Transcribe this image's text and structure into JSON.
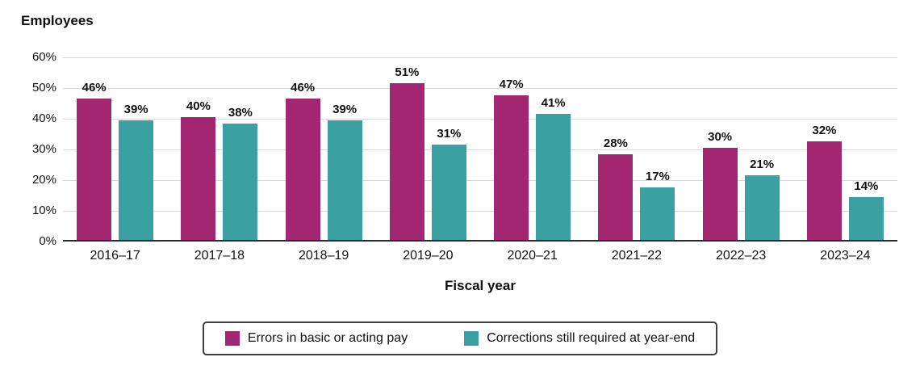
{
  "chart_data": {
    "type": "bar",
    "title": "",
    "y_axis_title": "Employees",
    "xlabel": "Fiscal year",
    "ylabel": "Employees",
    "categories": [
      "2016–17",
      "2017–18",
      "2018–19",
      "2019–20",
      "2020–21",
      "2021–22",
      "2022–23",
      "2023–24"
    ],
    "series": [
      {
        "name": "Errors in basic or acting pay",
        "color": "#a22672",
        "values": [
          46,
          40,
          46,
          51,
          47,
          28,
          30,
          32
        ]
      },
      {
        "name": "Corrections still required at year-end",
        "color": "#3aa0a2",
        "values": [
          39,
          38,
          39,
          31,
          41,
          17,
          21,
          14
        ]
      }
    ],
    "value_labels": [
      [
        "46%",
        "40%",
        "46%",
        "51%",
        "47%",
        "28%",
        "30%",
        "32%"
      ],
      [
        "39%",
        "38%",
        "39%",
        "31%",
        "41%",
        "17%",
        "21%",
        "14%"
      ]
    ],
    "ylim": [
      0,
      60
    ],
    "ytick_step": 10,
    "y_ticks": [
      "0%",
      "10%",
      "20%",
      "30%",
      "40%",
      "50%",
      "60%"
    ],
    "value_suffix": "%",
    "grid": true,
    "legend_position": "bottom",
    "colors": {
      "gridline": "#d9d9d9",
      "axis_line": "#2b2b2b",
      "text": "#111111"
    }
  }
}
